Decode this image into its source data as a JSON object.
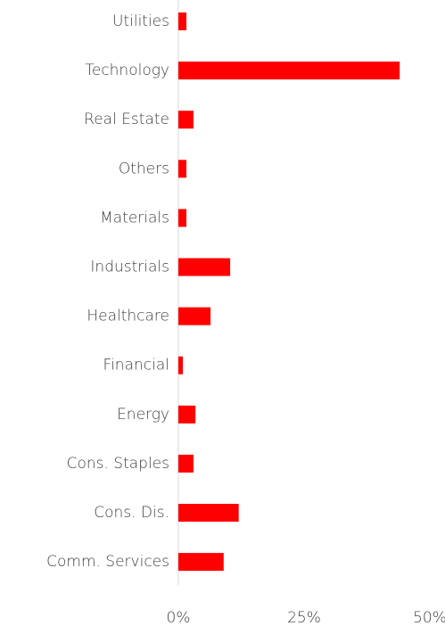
{
  "chart_data": {
    "type": "hbar",
    "categories": [
      "Utilities",
      "Technology",
      "Real Estate",
      "Others",
      "Materials",
      "Industrials",
      "Healthcare",
      "Financial",
      "Energy",
      "Cons. Staples",
      "Cons. Dis.",
      "Comm. Services"
    ],
    "values": [
      1.6,
      44,
      3,
      1.6,
      1.6,
      10.3,
      6.4,
      0.9,
      3.4,
      3,
      12,
      9
    ],
    "color": "#ff0000",
    "xlim": [
      0,
      50
    ],
    "xticks": [
      {
        "value": 0,
        "label": "0%"
      },
      {
        "value": 25,
        "label": "25%"
      },
      {
        "value": 50,
        "label": "50%"
      }
    ]
  }
}
